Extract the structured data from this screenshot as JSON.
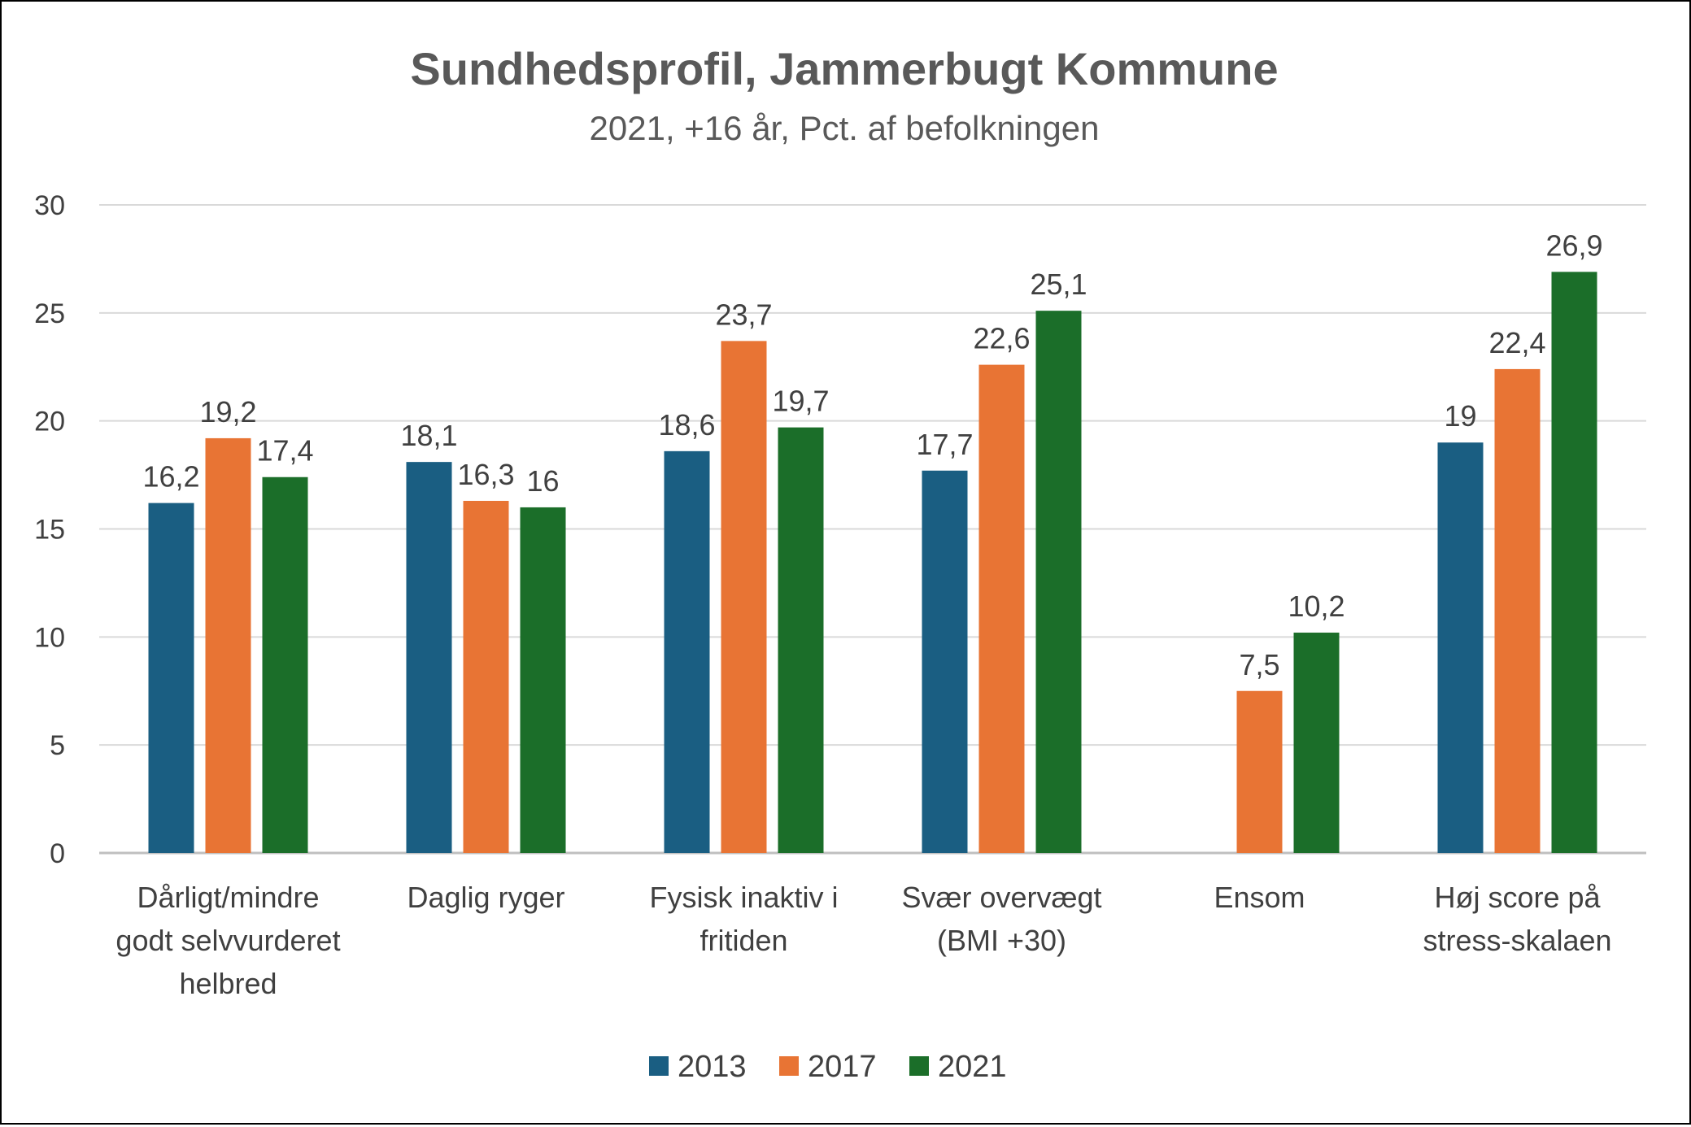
{
  "chart_data": {
    "type": "bar",
    "title": "Sundhedsprofil, Jammerbugt Kommune",
    "subtitle": "2021, +16 år, Pct. af befolkningen",
    "xlabel": "",
    "ylabel": "",
    "ylim": [
      0,
      30
    ],
    "yticks": [
      0,
      5,
      10,
      15,
      20,
      25,
      30
    ],
    "grid": true,
    "legend_position": "bottom",
    "categories": [
      [
        "Dårligt/mindre",
        "godt selvvurderet",
        "helbred"
      ],
      [
        "Daglig ryger"
      ],
      [
        "Fysisk inaktiv i",
        "fritiden"
      ],
      [
        "Svær overvægt",
        "(BMI +30)"
      ],
      [
        "Ensom"
      ],
      [
        "Høj score på",
        "stress-skalaen"
      ]
    ],
    "series": [
      {
        "name": "2013",
        "color": "#1a5e82",
        "values": [
          16.2,
          18.1,
          18.6,
          17.7,
          null,
          19
        ],
        "labels": [
          "16,2",
          "18,1",
          "18,6",
          "17,7",
          "",
          "19"
        ]
      },
      {
        "name": "2017",
        "color": "#e87434",
        "values": [
          19.2,
          16.3,
          23.7,
          22.6,
          7.5,
          22.4
        ],
        "labels": [
          "19,2",
          "16,3",
          "23,7",
          "22,6",
          "7,5",
          "22,4"
        ]
      },
      {
        "name": "2021",
        "color": "#1b6e29",
        "values": [
          17.4,
          16,
          19.7,
          25.1,
          10.2,
          26.9
        ],
        "labels": [
          "17,4",
          "16",
          "19,7",
          "25,1",
          "10,2",
          "26,9"
        ]
      }
    ]
  }
}
